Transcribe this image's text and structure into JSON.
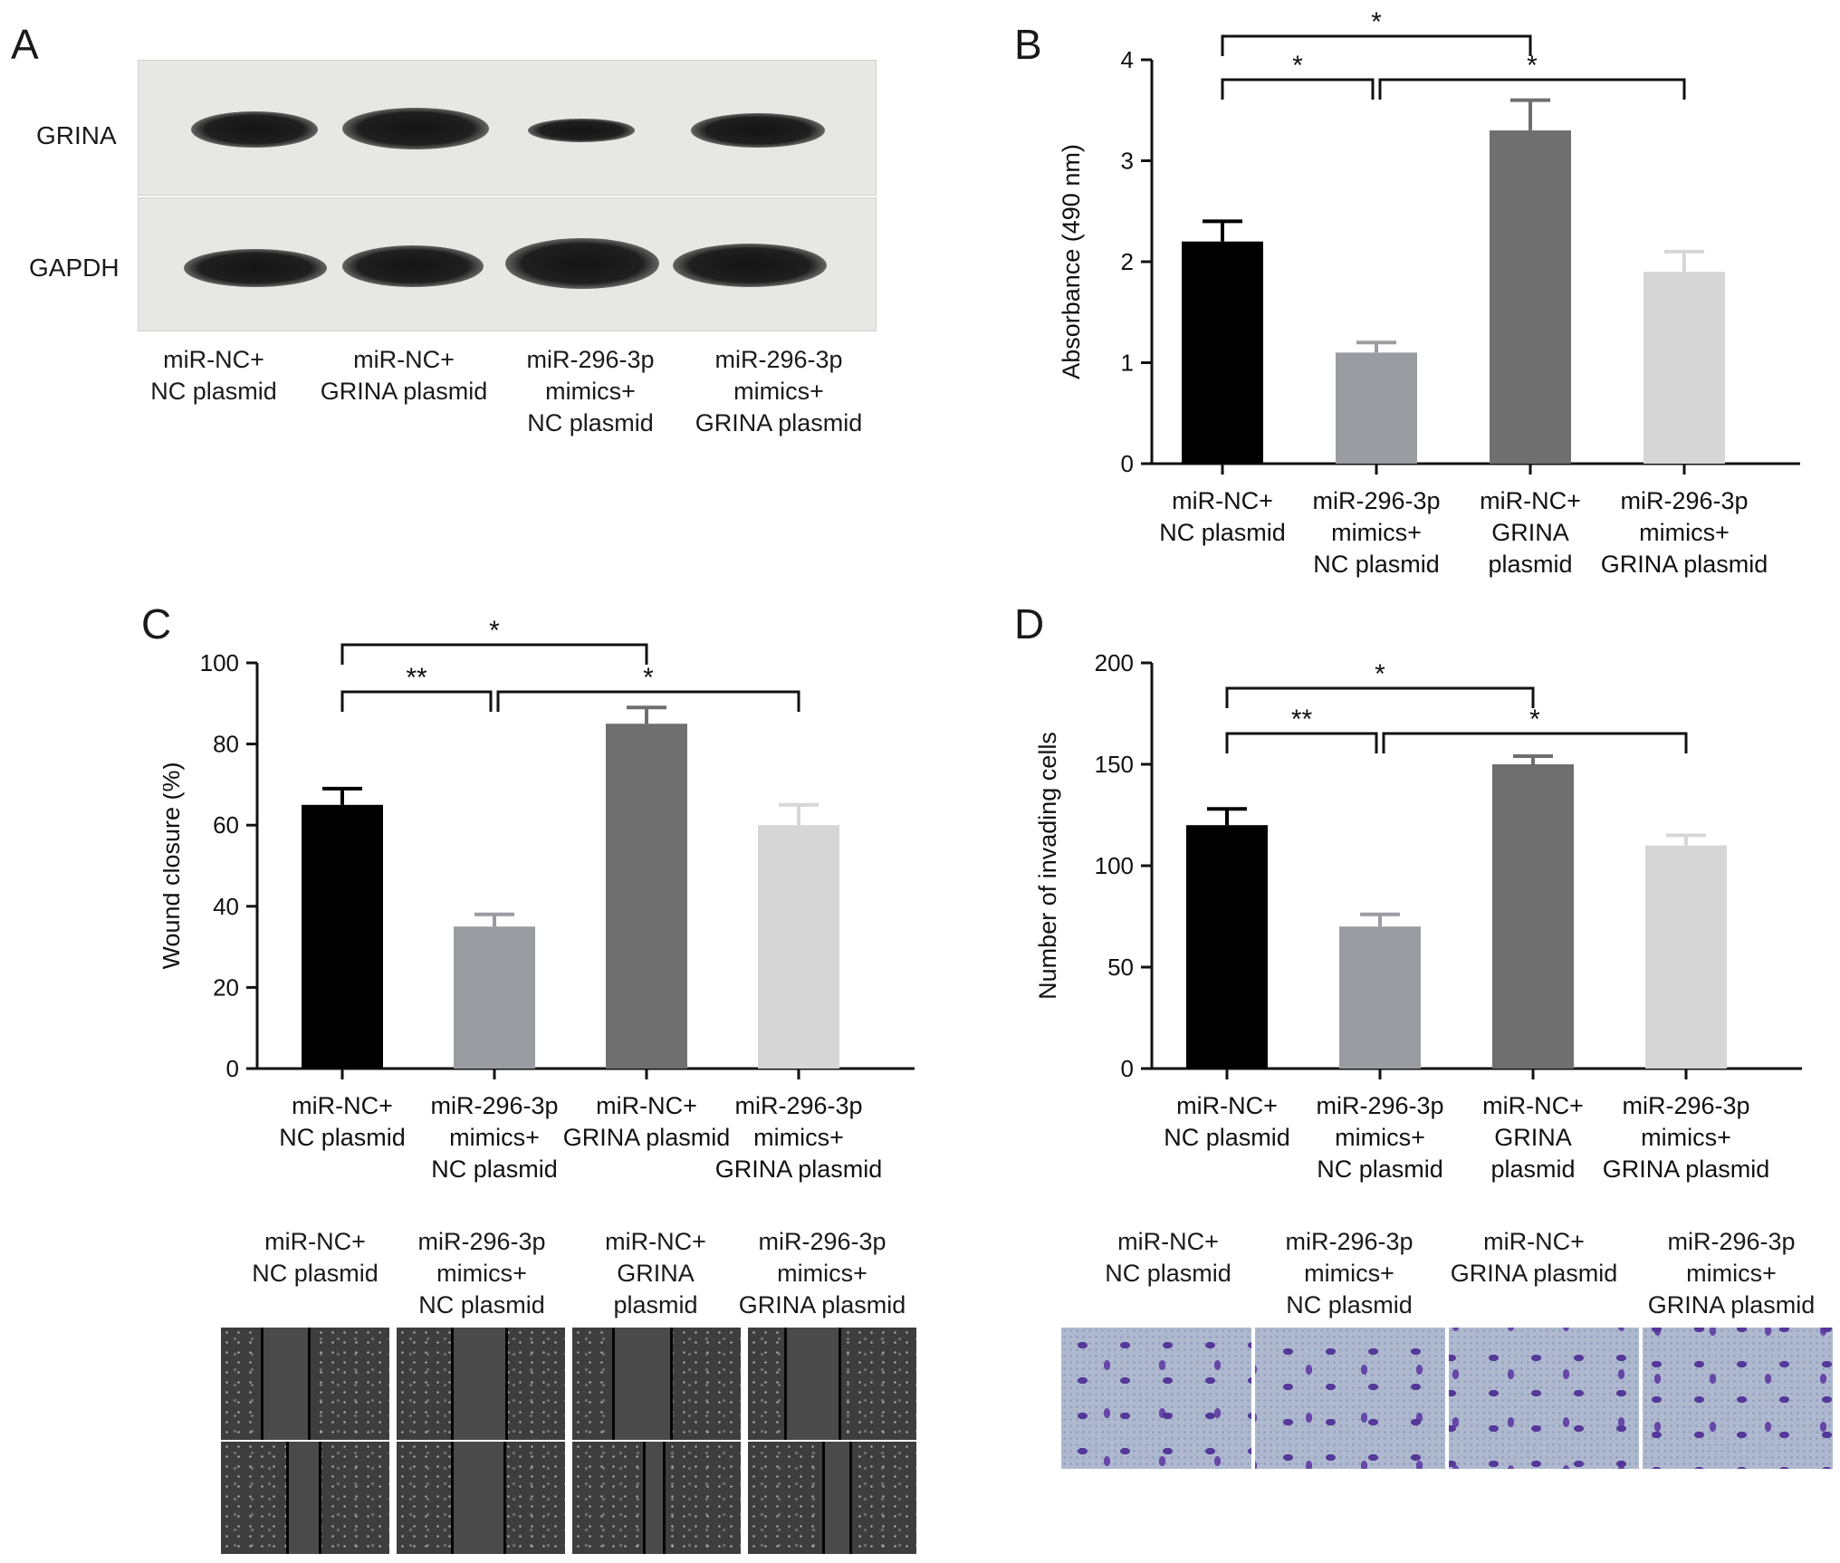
{
  "panels": {
    "A": {
      "letter": "A",
      "rows": [
        "GRINA",
        "GAPDH"
      ],
      "lanes": [
        [
          "miR-NC+",
          "NC plasmid"
        ],
        [
          "miR-NC+",
          "GRINA plasmid"
        ],
        [
          "miR-296-3p",
          "mimics+",
          "NC plasmid"
        ],
        [
          "miR-296-3p",
          "mimics+",
          "GRINA plasmid"
        ]
      ]
    },
    "C_images": {
      "labels": [
        [
          "miR-NC+",
          "NC plasmid"
        ],
        [
          "miR-296-3p",
          "mimics+",
          "NC plasmid"
        ],
        [
          "miR-NC+",
          "GRINA",
          "plasmid"
        ],
        [
          "miR-296-3p",
          "mimics+",
          "GRINA plasmid"
        ]
      ]
    },
    "D_images": {
      "labels": [
        [
          "miR-NC+",
          "NC plasmid"
        ],
        [
          "miR-296-3p",
          "mimics+",
          "NC plasmid"
        ],
        [
          "miR-NC+",
          "GRINA plasmid"
        ],
        [
          "miR-296-3p",
          "mimics+",
          "GRINA plasmid"
        ]
      ]
    }
  },
  "colors": {
    "bar1": "#000000",
    "bar2": "#9b9ba2",
    "bar3": "#6f6f6f",
    "bar4": "#d6d6d6"
  },
  "chart_data": [
    {
      "panel": "B",
      "type": "bar",
      "categories": [
        [
          "miR-NC+",
          "NC plasmid"
        ],
        [
          "miR-296-3p",
          "mimics+",
          "NC plasmid"
        ],
        [
          "miR-NC+",
          "GRINA",
          "plasmid"
        ],
        [
          "miR-296-3p",
          "mimics+",
          "GRINA plasmid"
        ]
      ],
      "values": [
        2.2,
        1.1,
        3.3,
        1.9
      ],
      "errors": [
        0.2,
        0.1,
        0.3,
        0.2
      ],
      "ylabel": "Absorbance (490 nm)",
      "ylim": [
        0,
        4
      ],
      "yticks": [
        0,
        1,
        2,
        3,
        4
      ],
      "significance": [
        {
          "from": 0,
          "to": 2,
          "label": "*",
          "level": 2
        },
        {
          "from": 0,
          "to": 1,
          "label": "*",
          "level": 1
        },
        {
          "from": 1,
          "to": 3,
          "label": "*",
          "level": 1
        }
      ]
    },
    {
      "panel": "C",
      "type": "bar",
      "categories": [
        [
          "miR-NC+",
          "NC plasmid"
        ],
        [
          "miR-296-3p",
          "mimics+",
          "NC plasmid"
        ],
        [
          "miR-NC+",
          "GRINA plasmid"
        ],
        [
          "miR-296-3p",
          "mimics+",
          "GRINA plasmid"
        ]
      ],
      "values": [
        65,
        35,
        85,
        60
      ],
      "errors": [
        4,
        3,
        4,
        5
      ],
      "ylabel": "Wound closure (%)",
      "ylim": [
        0,
        100
      ],
      "yticks": [
        0,
        20,
        40,
        60,
        80,
        100
      ],
      "significance": [
        {
          "from": 0,
          "to": 2,
          "label": "*",
          "level": 2
        },
        {
          "from": 0,
          "to": 1,
          "label": "**",
          "level": 1
        },
        {
          "from": 1,
          "to": 3,
          "label": "*",
          "level": 1
        }
      ]
    },
    {
      "panel": "D",
      "type": "bar",
      "categories": [
        [
          "miR-NC+",
          "NC plasmid"
        ],
        [
          "miR-296-3p",
          "mimics+",
          "NC plasmid"
        ],
        [
          "miR-NC+",
          "GRINA",
          "plasmid"
        ],
        [
          "miR-296-3p",
          "mimics+",
          "GRINA plasmid"
        ]
      ],
      "values": [
        120,
        70,
        150,
        110
      ],
      "errors": [
        8,
        6,
        4,
        5
      ],
      "ylabel": "Number of invading cells",
      "ylim": [
        0,
        200
      ],
      "yticks": [
        0,
        50,
        100,
        150,
        200
      ],
      "significance": [
        {
          "from": 0,
          "to": 2,
          "label": "*",
          "level": 2
        },
        {
          "from": 0,
          "to": 1,
          "label": "**",
          "level": 1
        },
        {
          "from": 1,
          "to": 3,
          "label": "*",
          "level": 1
        }
      ]
    }
  ]
}
